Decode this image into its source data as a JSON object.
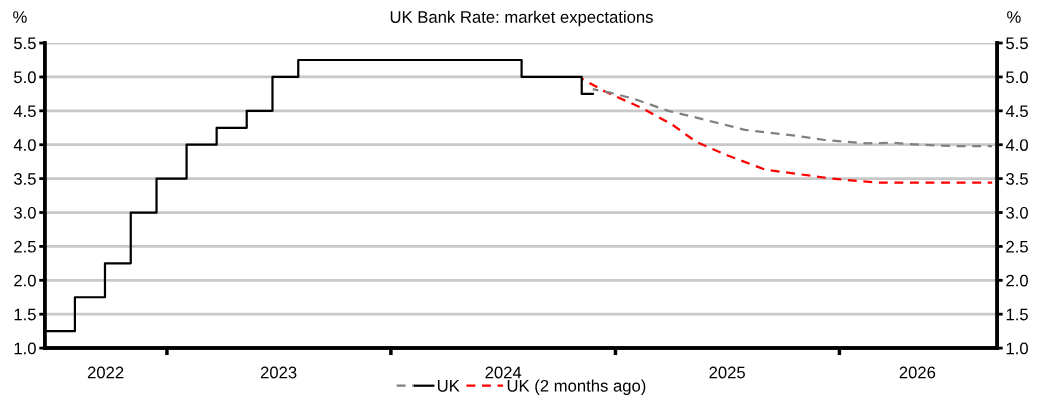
{
  "chart_data": {
    "type": "line",
    "title": "UK Bank Rate: market expectations",
    "ylabel": "%",
    "y2label": "%",
    "xlim": [
      "2022-06-16",
      "2026-09-15"
    ],
    "xticks": [
      {
        "value": "2023-01-01",
        "label": null
      },
      {
        "value": "2024-01-01",
        "label": null
      },
      {
        "value": "2025-01-01",
        "label": null
      },
      {
        "value": "2026-01-01",
        "label": null
      },
      {
        "value": "2022-09-23",
        "label": "2022"
      },
      {
        "value": "2023-07-02",
        "label": "2023"
      },
      {
        "value": "2024-07-02",
        "label": "2024"
      },
      {
        "value": "2025-07-02",
        "label": "2025"
      },
      {
        "value": "2026-05-08",
        "label": "2026"
      }
    ],
    "ylim": [
      1.0,
      5.5
    ],
    "yticks": [
      {
        "value": 1,
        "label": "1.0"
      },
      {
        "value": 1.5,
        "label": "1.5"
      },
      {
        "value": 2,
        "label": "2.0"
      },
      {
        "value": 2.5,
        "label": "2.5"
      },
      {
        "value": 3,
        "label": "3.0"
      },
      {
        "value": 3.5,
        "label": "3.5"
      },
      {
        "value": 4,
        "label": "4.0"
      },
      {
        "value": 4.5,
        "label": "4.5"
      },
      {
        "value": 5,
        "label": "5.0"
      },
      {
        "value": 5.5,
        "label": "5.5"
      }
    ],
    "y2lim": [
      1.0,
      5.5
    ],
    "y2ticks": [
      {
        "value": 1,
        "label": "1.0"
      },
      {
        "value": 1.5,
        "label": "1.5"
      },
      {
        "value": 2,
        "label": "2.0"
      },
      {
        "value": 2.5,
        "label": "2.5"
      },
      {
        "value": 3,
        "label": "3.0"
      },
      {
        "value": 3.5,
        "label": "3.5"
      },
      {
        "value": 4,
        "label": "4.0"
      },
      {
        "value": 4.5,
        "label": "4.5"
      },
      {
        "value": 5,
        "label": "5.0"
      },
      {
        "value": 5.5,
        "label": "5.5"
      }
    ],
    "grid": "y",
    "legend": "bottom",
    "series": [
      {
        "name": "UK",
        "type": "step",
        "color": "#000000",
        "line_style": "solid",
        "x": [
          "2022-06-16",
          "2022-08-04",
          "2022-09-22",
          "2022-11-03",
          "2022-12-15",
          "2023-02-02",
          "2023-03-23",
          "2023-05-11",
          "2023-06-22",
          "2023-08-03",
          "2024-08-01",
          "2024-11-07",
          "2024-11-25"
        ],
        "values": [
          1.25,
          1.75,
          2.25,
          3.0,
          3.5,
          4.0,
          4.25,
          4.5,
          5.0,
          5.25,
          5.0,
          4.75,
          4.75
        ]
      },
      {
        "color": "#808080",
        "line_style": "dashed",
        "x": [
          "2024-11-25",
          "2024-12-27",
          "2025-01-30",
          "2025-03-28",
          "2025-05-13",
          "2025-07-31",
          "2025-10-24",
          "2025-12-08",
          "2026-02-15",
          "2026-03-26",
          "2026-05-11",
          "2026-07-07",
          "2026-09-07"
        ],
        "values": [
          4.82,
          4.76,
          4.68,
          4.5,
          4.4,
          4.22,
          4.13,
          4.07,
          4.02,
          4.03,
          4.0,
          3.98,
          3.98
        ]
      },
      {
        "name": "UK (2 months ago)",
        "color": "#ff0000",
        "line_style": "dashed",
        "x": [
          "2024-11-08",
          "2024-12-16",
          "2025-02-11",
          "2025-04-03",
          "2025-05-13",
          "2025-07-03",
          "2025-09-03",
          "2025-10-24",
          "2025-12-20",
          "2026-03-04",
          "2026-05-11",
          "2026-09-07"
        ],
        "values": [
          4.97,
          4.78,
          4.55,
          4.3,
          4.04,
          3.84,
          3.63,
          3.57,
          3.5,
          3.44,
          3.44,
          3.44
        ]
      }
    ]
  }
}
